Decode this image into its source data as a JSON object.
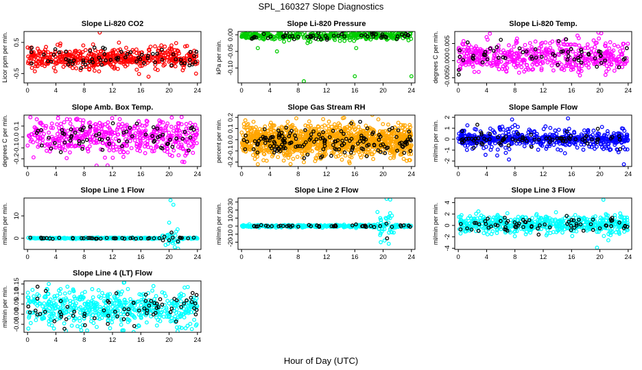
{
  "figure": {
    "title": "SPL_160327  Slope Diagnostics",
    "xlabel": "Hour of Day (UTC)"
  },
  "chart_data": [
    {
      "type": "scatter",
      "title": "Slope Li-820 CO2",
      "ylabel": "Licor ppm per min.",
      "xticks": [
        0,
        4,
        8,
        12,
        16,
        20,
        24
      ],
      "xlim": [
        -0.5,
        24.5
      ],
      "yticks": [
        -0.5,
        0.5
      ],
      "ytick_labels": [
        "-0.5",
        "0.5"
      ],
      "ylim": [
        -0.8,
        0.85
      ],
      "color": "#ff0000",
      "seed": 11,
      "spread": 0.17,
      "outliers": [
        [
          10.2,
          0.82
        ],
        [
          17.1,
          -0.6
        ],
        [
          23.8,
          -0.5
        ],
        [
          4.6,
          0.4
        ]
      ],
      "npts": 520
    },
    {
      "type": "scatter",
      "title": "Slope Li-820 Pressure",
      "ylabel": "kPa per min.",
      "xticks": [
        0,
        4,
        8,
        12,
        16,
        20,
        24
      ],
      "xlim": [
        -0.5,
        24.5
      ],
      "yticks": [
        0.0,
        -0.05,
        -0.1
      ],
      "ytick_labels": [
        "0.00",
        "-0.05",
        "-0.10"
      ],
      "ylim": [
        -0.145,
        0.01
      ],
      "color": "#00cc00",
      "seed": 23,
      "spread": 0.006,
      "center": -0.003,
      "outliers": [
        [
          8.8,
          -0.14
        ],
        [
          16,
          -0.125
        ],
        [
          24,
          -0.125
        ],
        [
          2.3,
          -0.04
        ],
        [
          16.2,
          -0.04
        ],
        [
          5,
          -0.05
        ]
      ],
      "npts": 420
    },
    {
      "type": "scatter",
      "title": "Slope Li-820 Temp.",
      "ylabel": "degrees C per min.",
      "xticks": [
        0,
        4,
        8,
        12,
        16,
        20,
        24
      ],
      "xlim": [
        -0.5,
        24.5
      ],
      "yticks": [
        -0.005,
        0.0,
        0.005
      ],
      "ytick_labels": [
        "-0.005",
        "0.000",
        "0.005"
      ],
      "ylim": [
        -0.0065,
        0.0085
      ],
      "color": "#ff00ff",
      "seed": 37,
      "spread": 0.0022,
      "center": 0.0012,
      "outliers": [
        [
          19.8,
          0.0082
        ],
        [
          20.2,
          0.008
        ]
      ],
      "npts": 500
    },
    {
      "type": "scatter",
      "title": "Slope Amb. Box Temp.",
      "ylabel": "degrees C per min.",
      "xticks": [
        0,
        4,
        8,
        12,
        16,
        20,
        24
      ],
      "xlim": [
        -0.5,
        24.5
      ],
      "yticks": [
        -0.2,
        -0.1,
        0.0,
        0.1
      ],
      "ytick_labels": [
        "-0.2",
        "-0.1",
        "0.0",
        "0.1"
      ],
      "ylim": [
        -0.27,
        0.2
      ],
      "color": "#ff00ff",
      "seed": 41,
      "spread": 0.08,
      "center": 0.0,
      "outliers": [
        [
          11.3,
          -0.26
        ],
        [
          0.4,
          0.18
        ],
        [
          6,
          0.16
        ]
      ],
      "npts": 520
    },
    {
      "type": "scatter",
      "title": "Slope Gas Stream RH",
      "ylabel": "percent per min.",
      "xticks": [
        0,
        4,
        8,
        12,
        16,
        20,
        24
      ],
      "xlim": [
        -0.5,
        24.5
      ],
      "yticks": [
        -0.2,
        -0.1,
        0.0,
        0.1,
        0.2
      ],
      "ytick_labels": [
        "-0.2",
        "-0.1",
        "0.0",
        "0.1",
        "0.2"
      ],
      "ylim": [
        -0.24,
        0.22
      ],
      "color": "#ffa500",
      "seed": 53,
      "spread": 0.07,
      "center": -0.01,
      "outliers": [
        [
          2.3,
          -0.22
        ]
      ],
      "npts": 1300
    },
    {
      "type": "scatter",
      "title": "Slope Sample Flow",
      "ylabel": "ml/min per min.",
      "xticks": [
        0,
        4,
        8,
        12,
        16,
        20,
        24
      ],
      "xlim": [
        -0.5,
        24.5
      ],
      "yticks": [
        -2,
        -1,
        0,
        1,
        2
      ],
      "ytick_labels": [
        "-2",
        "-1",
        "0",
        "1",
        "2"
      ],
      "ylim": [
        -2.5,
        2.2
      ],
      "color": "#0000ff",
      "seed": 67,
      "spread": 0.55,
      "center": 0.0,
      "outliers": [
        [
          23.4,
          -2.3
        ],
        [
          15.5,
          1.9
        ],
        [
          7.6,
          1.8
        ]
      ],
      "npts": 620,
      "center_dense": true
    },
    {
      "type": "scatter",
      "title": "Slope Line 1 Flow",
      "ylabel": "ml/min per min.",
      "xticks": [
        0,
        4,
        8,
        12,
        16,
        20,
        24
      ],
      "xlim": [
        -0.5,
        24.5
      ],
      "yticks": [
        0,
        10
      ],
      "ytick_labels": [
        "0",
        "10"
      ],
      "ylim": [
        -5,
        18
      ],
      "color": "#00ffff",
      "seed": 79,
      "spread": 0.15,
      "center": 0.0,
      "outliers": [
        [
          20.2,
          17
        ],
        [
          20.6,
          15
        ],
        [
          19.5,
          -3
        ],
        [
          20.8,
          -4
        ],
        [
          21.2,
          4
        ],
        [
          20,
          7
        ],
        [
          21,
          3
        ]
      ],
      "npts": 360
    },
    {
      "type": "scatter",
      "title": "Slope Line 2 Flow",
      "ylabel": "ml/min per min.",
      "xticks": [
        0,
        4,
        8,
        12,
        16,
        20,
        24
      ],
      "xlim": [
        -0.5,
        24.5
      ],
      "yticks": [
        -20,
        -10,
        0,
        10,
        20,
        30
      ],
      "ytick_labels": [
        "-20",
        "-10",
        "0",
        "10",
        "20",
        "30"
      ],
      "ylim": [
        -29,
        35
      ],
      "color": "#00ffff",
      "seed": 83,
      "spread": 0.8,
      "center": 0.0,
      "outliers": [
        [
          20.5,
          34
        ],
        [
          21,
          33
        ],
        [
          20.2,
          -18
        ],
        [
          20.8,
          -22
        ],
        [
          19.6,
          10
        ],
        [
          21.5,
          -8
        ]
      ],
      "npts": 360
    },
    {
      "type": "scatter",
      "title": "Slope Line 3 Flow",
      "ylabel": "ml/min per min.",
      "xticks": [
        0,
        4,
        8,
        12,
        16,
        20,
        24
      ],
      "xlim": [
        -0.5,
        24.5
      ],
      "yticks": [
        -4,
        -2,
        0,
        2,
        4
      ],
      "ytick_labels": [
        "-4",
        "-2",
        "0",
        "2",
        "4"
      ],
      "ylim": [
        -4.2,
        4.8
      ],
      "color": "#00ffff",
      "seed": 97,
      "spread": 0.8,
      "center": 0.2,
      "outliers": [
        [
          20.5,
          4.5
        ],
        [
          19.6,
          -3.9
        ],
        [
          21.2,
          -2.6
        ]
      ],
      "npts": 560
    },
    {
      "type": "scatter",
      "title": "Slope Line 4 (LT) Flow",
      "ylabel": "ml/min per min.",
      "xticks": [
        0,
        4,
        8,
        12,
        16,
        20,
        24
      ],
      "xlim": [
        -0.5,
        24.5
      ],
      "yticks": [
        -0.05,
        0.0,
        0.05,
        0.1,
        0.15
      ],
      "ytick_labels": [
        "-0.05",
        "0.00",
        "0.05",
        "0.10",
        "0.15"
      ],
      "ylim": [
        -0.09,
        0.165
      ],
      "color": "#00ffff",
      "seed": 101,
      "spread": 0.045,
      "center": 0.03,
      "outliers": [
        [
          13.4,
          -0.08
        ],
        [
          21.2,
          -0.085
        ],
        [
          3,
          0.15
        ]
      ],
      "npts": 560
    }
  ]
}
